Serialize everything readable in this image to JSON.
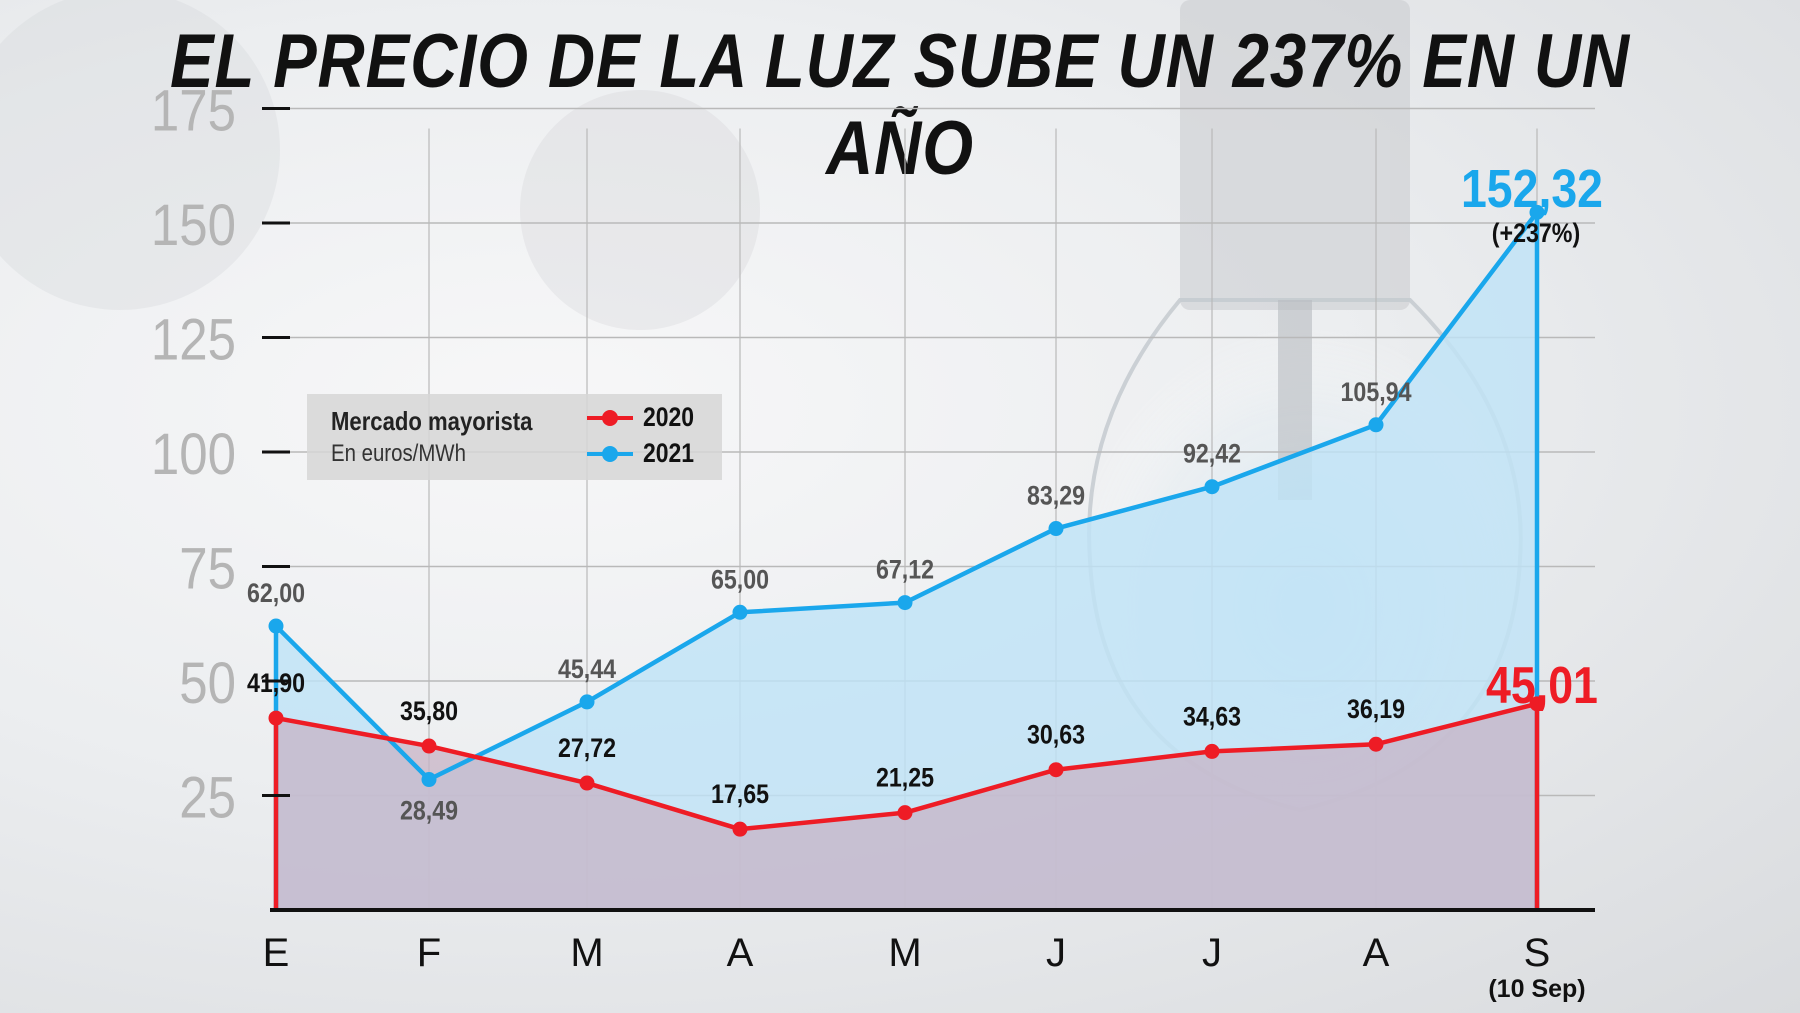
{
  "title": "EL PRECIO DE LA LUZ SUBE UN 237% EN UN AÑO",
  "legend": {
    "title": "Mercado mayorista",
    "subtitle": "En euros/MWh"
  },
  "x_note": "(10 Sep)",
  "highlight": {
    "value_2021": "152,32",
    "pct_2021": "(+237%)",
    "value_2020": "45,01"
  },
  "colors": {
    "series_2020": "#ee1c25",
    "series_2021": "#1aa7ec",
    "axis": "#111111",
    "tick_label": "#b5b5b5",
    "grid": "#b9b9b9"
  },
  "chart_data": {
    "type": "area",
    "categories": [
      "E",
      "F",
      "M",
      "A",
      "M",
      "J",
      "J",
      "A",
      "S"
    ],
    "ylim": [
      0,
      175
    ],
    "yticks": [
      25,
      50,
      75,
      100,
      125,
      150,
      175
    ],
    "grid": true,
    "legend_position": "top-left",
    "series": [
      {
        "name": "2020",
        "values": [
          41.9,
          35.8,
          27.72,
          17.65,
          21.25,
          30.63,
          34.63,
          36.19,
          45.01
        ],
        "labels": [
          "41,90",
          "35,80",
          "27,72",
          "17,65",
          "21,25",
          "30,63",
          "34,63",
          "36,19",
          "45,01"
        ]
      },
      {
        "name": "2021",
        "values": [
          62.0,
          28.49,
          45.44,
          65.0,
          67.12,
          83.29,
          92.42,
          105.94,
          152.32
        ],
        "labels": [
          "62,00",
          "28,49",
          "45,44",
          "65,00",
          "67,12",
          "83,29",
          "92,42",
          "105,94",
          "152,32"
        ]
      }
    ]
  }
}
